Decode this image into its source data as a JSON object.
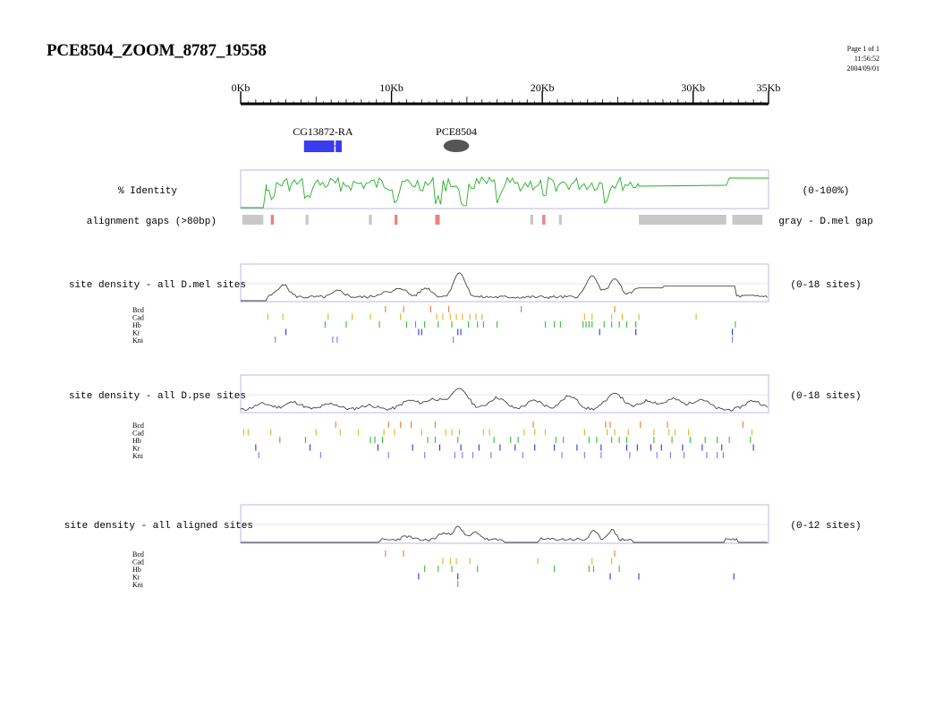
{
  "header": {
    "title": "PCE8504_ZOOM_8787_19558",
    "page_label": "Page 1 of 1",
    "time": "11:56:52",
    "date": "2004/09/01"
  },
  "ruler": {
    "min_kb": 0,
    "max_kb": 35,
    "labels": [
      {
        "kb": 0,
        "text": "0Kb"
      },
      {
        "kb": 10,
        "text": "10Kb"
      },
      {
        "kb": 20,
        "text": "20Kb"
      },
      {
        "kb": 30,
        "text": "30Kb"
      },
      {
        "kb": 35,
        "text": "35Kb"
      }
    ],
    "minor_step_kb": 1
  },
  "features": [
    {
      "id": "gene",
      "label": "CG13872-RA",
      "type": "gene",
      "color": "#3b3bf0",
      "exons": [
        [
          4.2,
          6.2
        ],
        [
          6.3,
          6.7
        ]
      ]
    },
    {
      "id": "element",
      "label": "PCE8504",
      "type": "element",
      "color": "#555555",
      "center_kb": 14.3,
      "width_kb": 1.7
    }
  ],
  "identity": {
    "label": "% Identity",
    "range_label": "(0-100%)",
    "color": "#22b022"
  },
  "gaps": {
    "label": "alignment gaps (>80bp)",
    "legend": "gray - D.mel gap",
    "gray": [
      [
        0.1,
        1.5
      ],
      [
        4.3,
        4.5
      ],
      [
        8.5,
        8.7
      ],
      [
        19.2,
        19.4
      ],
      [
        21.1,
        21.3
      ],
      [
        26.4,
        32.2
      ],
      [
        32.6,
        34.6
      ]
    ],
    "red": [
      [
        2.0,
        2.2
      ],
      [
        10.2,
        10.4
      ],
      [
        12.9,
        13.2
      ],
      [
        20.0,
        20.2
      ]
    ],
    "gray_color": "#c8c8c8",
    "red_color": "#f08080"
  },
  "tf_colors": {
    "Bcd": "#f07830",
    "Cad": "#e8b020",
    "Hb": "#30c030",
    "Kr": "#3030e0",
    "Kni": "#9070f0"
  },
  "tracks": [
    {
      "id": "dmel",
      "label": "site density - all D.mel sites",
      "range_label": "(0-18 sites)",
      "sites": {
        "Bcd": [
          9.6,
          10.8,
          12.6,
          13.8,
          18.6,
          24.8
        ],
        "Cad": [
          1.8,
          2.8,
          5.8,
          7.4,
          8.6,
          10.6,
          13.0,
          13.4,
          13.9,
          14.3,
          14.7,
          15.2,
          15.6,
          16.0,
          22.8,
          23.3,
          24.6,
          25.3,
          26.4,
          30.2
        ],
        "Hb": [
          5.6,
          7.0,
          9.2,
          11.0,
          11.6,
          12.2,
          13.1,
          14.0,
          15.1,
          15.7,
          16.1,
          17.0,
          20.2,
          20.8,
          21.2,
          22.7,
          22.9,
          23.1,
          23.3,
          24.1,
          24.6,
          25.1,
          25.6,
          26.2,
          32.8
        ],
        "Kr": [
          3.0,
          11.8,
          12.0,
          14.4,
          14.6,
          23.8,
          26.2,
          32.6
        ],
        "Kni": [
          2.3,
          6.1,
          6.4,
          14.1,
          32.6
        ]
      }
    },
    {
      "id": "dpse",
      "label": "site density - all D.pse sites",
      "range_label": "(0-18 sites)",
      "sites": {
        "Bcd": [
          6.3,
          9.8,
          10.6,
          11.3,
          12.9,
          19.4,
          24.2,
          24.5,
          26.5,
          28.3,
          33.3
        ],
        "Cad": [
          0.2,
          0.5,
          2.0,
          5.0,
          6.6,
          7.8,
          9.5,
          10.2,
          12.0,
          13.6,
          14.0,
          14.5,
          16.1,
          16.5,
          18.8,
          19.5,
          20.2,
          22.8,
          24.3,
          24.8,
          25.7,
          27.4,
          28.4,
          28.8,
          29.7,
          33.9
        ],
        "Hb": [
          2.6,
          4.3,
          8.6,
          8.9,
          9.4,
          12.4,
          12.9,
          14.4,
          16.8,
          17.9,
          18.4,
          20.9,
          21.4,
          23.1,
          23.6,
          24.6,
          25.1,
          25.6,
          27.4,
          28.6,
          29.8,
          30.8,
          31.6,
          32.4,
          33.8
        ],
        "Kr": [
          1.0,
          4.6,
          9.1,
          11.4,
          13.2,
          14.6,
          15.8,
          17.2,
          18.2,
          19.5,
          20.8,
          22.3,
          23.9,
          25.6,
          26.3,
          27.2,
          27.9,
          29.3,
          30.6,
          31.9,
          34.0
        ],
        "Kni": [
          1.2,
          5.3,
          9.8,
          12.2,
          14.2,
          14.7,
          15.4,
          16.6,
          18.7,
          21.3,
          22.8,
          23.9,
          25.8,
          27.6,
          28.5,
          29.4,
          30.9,
          31.6,
          32.0
        ]
      }
    },
    {
      "id": "aligned",
      "label": "site density - all aligned sites",
      "range_label": "(0-12 sites)",
      "sites": {
        "Bcd": [
          9.6,
          10.8,
          24.8
        ],
        "Cad": [
          13.4,
          13.9,
          14.3,
          15.2,
          19.7,
          23.3,
          24.6
        ],
        "Hb": [
          12.2,
          13.1,
          14.0,
          15.7,
          20.8,
          23.1,
          23.4,
          25.1
        ],
        "Kr": [
          11.8,
          14.4,
          24.5,
          26.4,
          32.7
        ],
        "Kni": [
          14.4
        ]
      }
    }
  ]
}
